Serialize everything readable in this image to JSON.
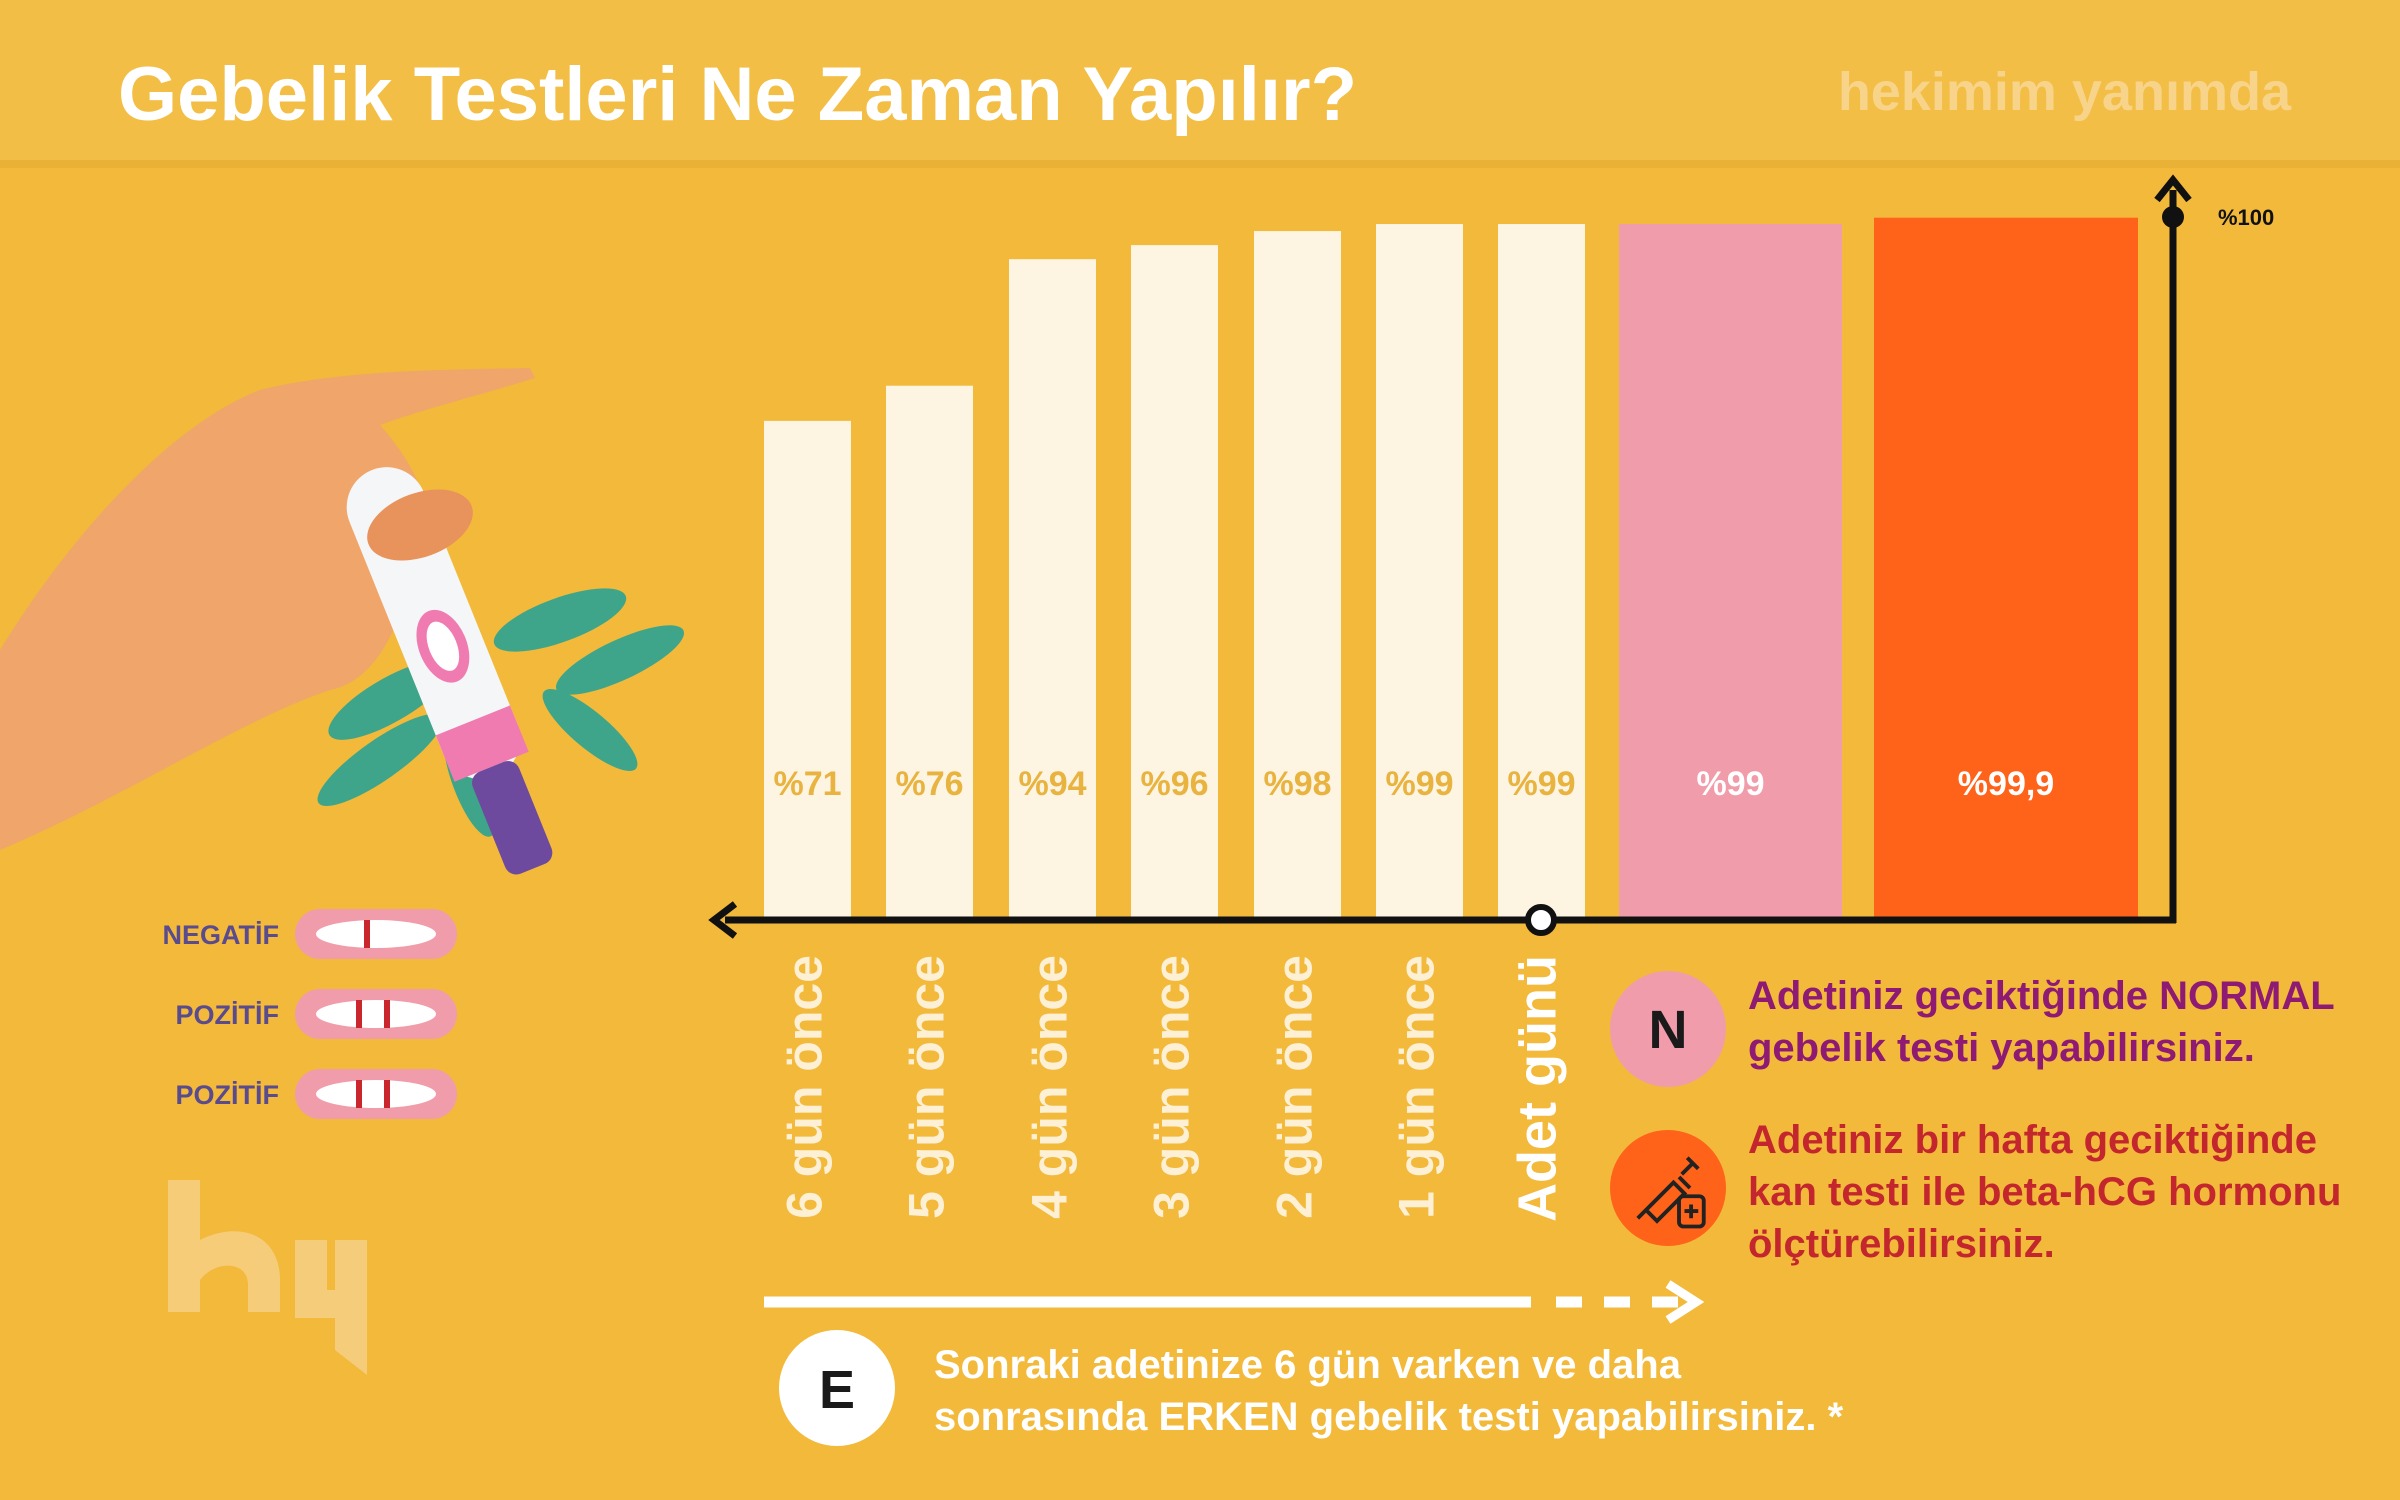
{
  "header": {
    "title": "Gebelik Testleri Ne Zaman Yapılır?",
    "brand": "hekimim yanımda"
  },
  "test_strips": [
    "NEGATİF",
    "POZİTİF",
    "POZİTİF"
  ],
  "notes": [
    {
      "badge": "N",
      "lines": [
        "Adetiniz geciktiğinde NORMAL",
        "gebelik testi yapabilirsiniz."
      ]
    },
    {
      "lines": [
        "Adetiniz bir hafta geciktiğinde",
        "kan testi ile beta-hCG hormonu",
        "ölçtürebilirsiniz."
      ]
    },
    {
      "badge": "E",
      "lines": [
        "Sonraki adetinize 6 gün varken ve daha",
        "sonrasında ERKEN gebelik testi yapabilirsiniz. *"
      ]
    }
  ],
  "chart_data": {
    "type": "bar",
    "categories": [
      "6 gün önce",
      "5 gün önce",
      "4 gün önce",
      "3 gün önce",
      "2 gün önce",
      "1 gün önce",
      "Adet günü",
      null,
      null
    ],
    "values": [
      71,
      76,
      94,
      96,
      98,
      99,
      99,
      99,
      99.9
    ],
    "value_labels": [
      "%71",
      "%76",
      "%94",
      "%96",
      "%98",
      "%99",
      "%99",
      "%99",
      "%99,9"
    ],
    "colors": [
      "#fdf4e1",
      "#fdf4e1",
      "#fdf4e1",
      "#fdf4e1",
      "#fdf4e1",
      "#fdf4e1",
      "#fdf4e1",
      "#f19cab",
      "#ff6219"
    ],
    "ylim": [
      0,
      100
    ],
    "yticks": [
      {
        "value": 100,
        "label": "%100"
      }
    ]
  }
}
